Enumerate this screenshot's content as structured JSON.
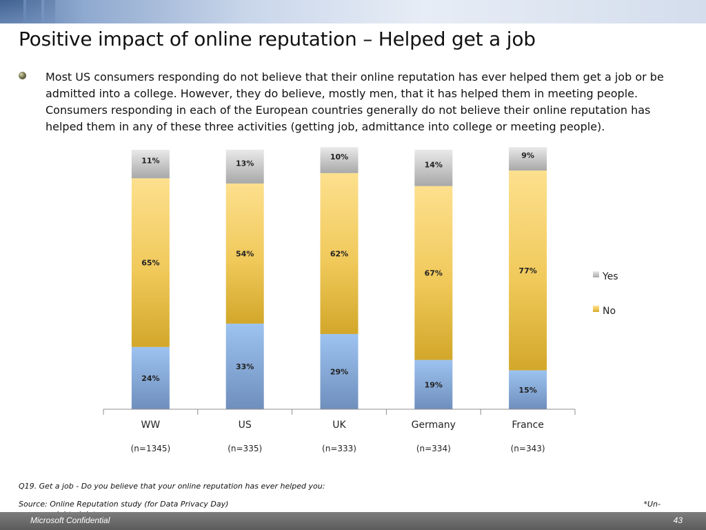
{
  "slide": {
    "title": "Positive impact of online reputation – Helped get a job",
    "bullet": "Most US consumers responding do not believe that their online reputation has ever helped them get a job or be admitted into a college. However, they do believe, mostly men, that it has helped them in meeting people. Consumers responding in each of the European countries generally  do not believe their online reputation has helped them in any of these three activities (getting  job, admittance into college or meeting people).",
    "question": "Q19. Get a job - Do you believe that your online reputation has ever helped you:",
    "source": "Source: Online Reputation study (for Data Privacy Day)",
    "source_note_part1": "*Un-",
    "source_note_part2": "weighted data",
    "footer_label": "Microsoft Confidential",
    "page_number": "43"
  },
  "chart_data": {
    "type": "bar",
    "stacked": true,
    "categories": [
      "WW",
      "US",
      "UK",
      "Germany",
      "France"
    ],
    "sample_sizes": [
      "(n=1345)",
      "(n=335)",
      "(n=333)",
      "(n=334)",
      "(n=343)"
    ],
    "series": [
      {
        "values": [
          24,
          33,
          29,
          19,
          15
        ],
        "labels": [
          "24%",
          "33%",
          "29%",
          "19%",
          "15%"
        ],
        "color": "#8db3e2"
      },
      {
        "name": "No",
        "values": [
          65,
          54,
          62,
          67,
          77
        ],
        "labels": [
          "65%",
          "54%",
          "62%",
          "67%",
          "77%"
        ],
        "color": "#f2c94c"
      },
      {
        "values": [
          11,
          13,
          10,
          14,
          9
        ],
        "labels": [
          "11%",
          "13%",
          "10%",
          "14%",
          "9%"
        ],
        "color": "#bdbdbd"
      }
    ],
    "legend": {
      "position": "right",
      "entries": [
        "Yes",
        "No"
      ],
      "colors": [
        "#bdbdbd",
        "#f2c94c"
      ]
    },
    "ylim": [
      0,
      100
    ],
    "grid": false
  }
}
